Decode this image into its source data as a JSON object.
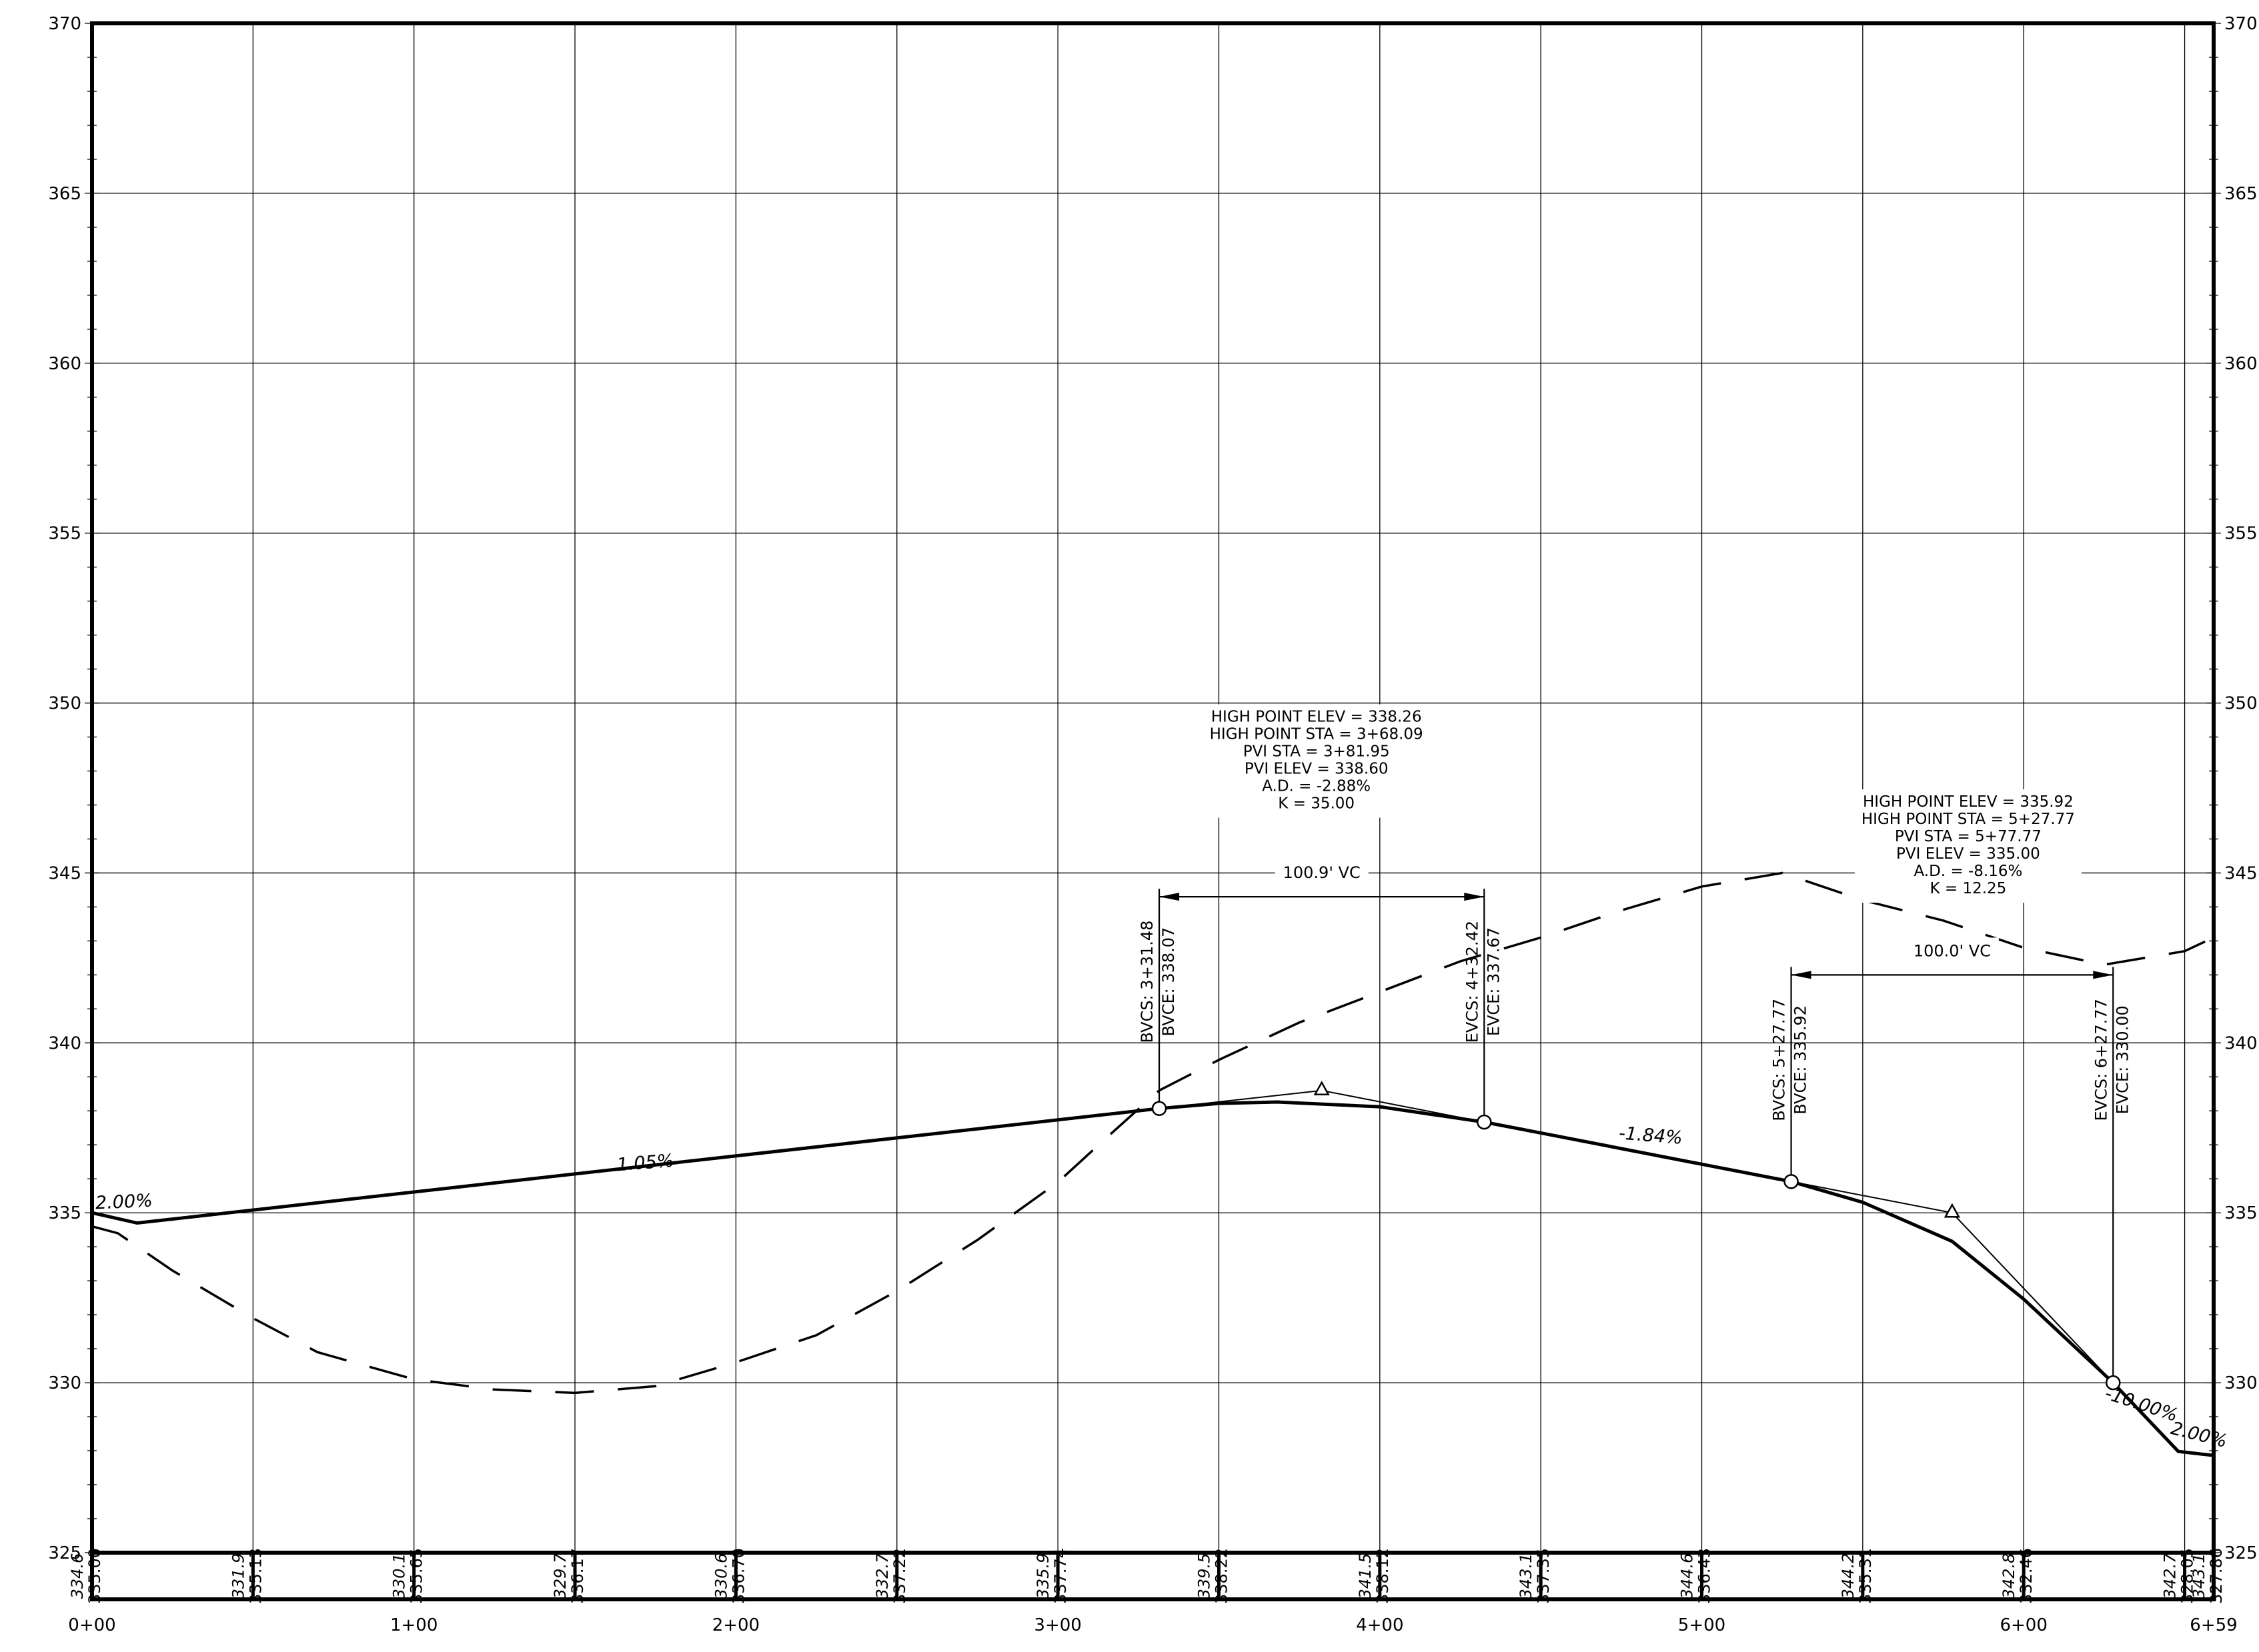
{
  "chart_data": {
    "type": "line",
    "title": "",
    "xlabel": "",
    "ylabel": "",
    "xlim": [
      0,
      659
    ],
    "ylim": [
      325,
      370
    ],
    "grid": true,
    "station_ticks": [
      {
        "x": 0,
        "label": "0+00"
      },
      {
        "x": 100,
        "label": "1+00"
      },
      {
        "x": 200,
        "label": "2+00"
      },
      {
        "x": 300,
        "label": "3+00"
      },
      {
        "x": 400,
        "label": "4+00"
      },
      {
        "x": 500,
        "label": "5+00"
      },
      {
        "x": 600,
        "label": "6+00"
      },
      {
        "x": 659,
        "label": "6+59"
      }
    ],
    "elevation_ticks": [
      {
        "y": 325,
        "label": "325"
      },
      {
        "y": 330,
        "label": "330"
      },
      {
        "y": 335,
        "label": "335"
      },
      {
        "y": 340,
        "label": "340"
      },
      {
        "y": 345,
        "label": "345"
      },
      {
        "y": 350,
        "label": "350"
      },
      {
        "y": 355,
        "label": "355"
      },
      {
        "y": 360,
        "label": "360"
      },
      {
        "y": 365,
        "label": "365"
      },
      {
        "y": 370,
        "label": "370"
      }
    ],
    "series": [
      {
        "style": "dashed",
        "points": [
          [
            0,
            334.6
          ],
          [
            8,
            334.4
          ],
          [
            25,
            333.3
          ],
          [
            50,
            331.9
          ],
          [
            70,
            330.9
          ],
          [
            100,
            330.1
          ],
          [
            125,
            329.8
          ],
          [
            150,
            329.7
          ],
          [
            175,
            329.9
          ],
          [
            200,
            330.6
          ],
          [
            225,
            331.4
          ],
          [
            250,
            332.7
          ],
          [
            275,
            334.2
          ],
          [
            300,
            335.9
          ],
          [
            315,
            337.2
          ],
          [
            331.48,
            338.6
          ],
          [
            350,
            339.5
          ],
          [
            375,
            340.6
          ],
          [
            400,
            341.5
          ],
          [
            425,
            342.4
          ],
          [
            450,
            343.1
          ],
          [
            475,
            343.9
          ],
          [
            500,
            344.6
          ],
          [
            525,
            345.0
          ],
          [
            550,
            344.2
          ],
          [
            575,
            343.6
          ],
          [
            600,
            342.8
          ],
          [
            625,
            342.3
          ],
          [
            650,
            342.7
          ],
          [
            659,
            343.1
          ]
        ]
      },
      {
        "style": "solid",
        "points": [
          [
            0,
            335.0
          ],
          [
            14,
            334.7
          ],
          [
            331.48,
            338.07
          ],
          [
            350,
            338.22
          ],
          [
            368.09,
            338.26
          ],
          [
            400,
            338.12
          ],
          [
            432.42,
            337.67
          ],
          [
            450,
            337.35
          ],
          [
            500,
            336.43
          ],
          [
            527.77,
            335.92
          ],
          [
            550,
            335.31
          ],
          [
            577.77,
            334.16
          ],
          [
            600,
            332.46
          ],
          [
            627.77,
            330.0
          ],
          [
            648,
            327.98
          ],
          [
            659,
            327.86
          ]
        ]
      }
    ],
    "tangent_lines": [
      [
        [
          331.48,
          338.07
        ],
        [
          381.95,
          338.6
        ],
        [
          432.42,
          337.67
        ]
      ],
      [
        [
          527.77,
          335.92
        ],
        [
          577.77,
          335.0
        ],
        [
          627.77,
          330.0
        ]
      ]
    ],
    "pvi_points": [
      [
        381.95,
        338.6
      ],
      [
        577.77,
        335.0
      ]
    ],
    "curve_points": [
      [
        331.48,
        338.07
      ],
      [
        432.42,
        337.67
      ],
      [
        527.77,
        335.92
      ],
      [
        627.77,
        330.0
      ]
    ],
    "grade_labels": [
      {
        "text": "2.00%",
        "x": 10,
        "y": 335.15
      },
      {
        "text": "1.05%",
        "x": 172,
        "y": 336.3
      },
      {
        "text": "-1.84%",
        "x": 484,
        "y": 337.1
      },
      {
        "text": "-10.00%",
        "x": 636,
        "y": 329.2
      },
      {
        "text": "2.00%",
        "x": 654,
        "y": 328.3
      }
    ],
    "vertical_curves": [
      {
        "bvc_station": "BVCS: 3+31.48",
        "bvc_elev": "BVCE: 338.07",
        "evc_station": "EVCS: 4+32.42",
        "evc_elev": "EVCE: 337.67",
        "length": "100.9' VC",
        "start": 331.48,
        "end": 432.42,
        "info": [
          "HIGH POINT ELEV = 338.26",
          "HIGH POINT STA = 3+68.09",
          "PVI STA = 3+81.95",
          "PVI ELEV = 338.60",
          "A.D. = -2.88%",
          "K = 35.00"
        ]
      },
      {
        "bvc_station": "BVCS: 5+27.77",
        "bvc_elev": "BVCE: 335.92",
        "evc_station": "EVCS: 6+27.77",
        "evc_elev": "EVCE: 330.00",
        "length": "100.0' VC",
        "start": 527.77,
        "end": 627.77,
        "info": [
          "HIGH POINT ELEV = 335.92",
          "HIGH POINT STA = 5+27.77",
          "PVI STA = 5+77.77",
          "PVI ELEV = 335.00",
          "A.D. = -8.16%",
          "K = 12.25"
        ]
      }
    ],
    "elevation_table": [
      {
        "x": 0,
        "existing": "334.6",
        "proposed": "335.00"
      },
      {
        "x": 50,
        "existing": "331.9",
        "proposed": "335.13"
      },
      {
        "x": 100,
        "existing": "330.1",
        "proposed": "335.65"
      },
      {
        "x": 150,
        "existing": "329.7",
        "proposed": "336.17"
      },
      {
        "x": 200,
        "existing": "330.6",
        "proposed": "336.70"
      },
      {
        "x": 250,
        "existing": "332.7",
        "proposed": "337.22"
      },
      {
        "x": 300,
        "existing": "335.9",
        "proposed": "337.74"
      },
      {
        "x": 350,
        "existing": "339.5",
        "proposed": "338.22"
      },
      {
        "x": 400,
        "existing": "341.5",
        "proposed": "338.12"
      },
      {
        "x": 450,
        "existing": "343.1",
        "proposed": "337.35"
      },
      {
        "x": 500,
        "existing": "344.6",
        "proposed": "336.43"
      },
      {
        "x": 550,
        "existing": "344.2",
        "proposed": "335.31"
      },
      {
        "x": 600,
        "existing": "342.8",
        "proposed": "332.46"
      },
      {
        "x": 650,
        "existing": "342.7",
        "proposed": "328.05"
      },
      {
        "x": 659,
        "existing": "343.1",
        "proposed": "327.86"
      }
    ]
  }
}
